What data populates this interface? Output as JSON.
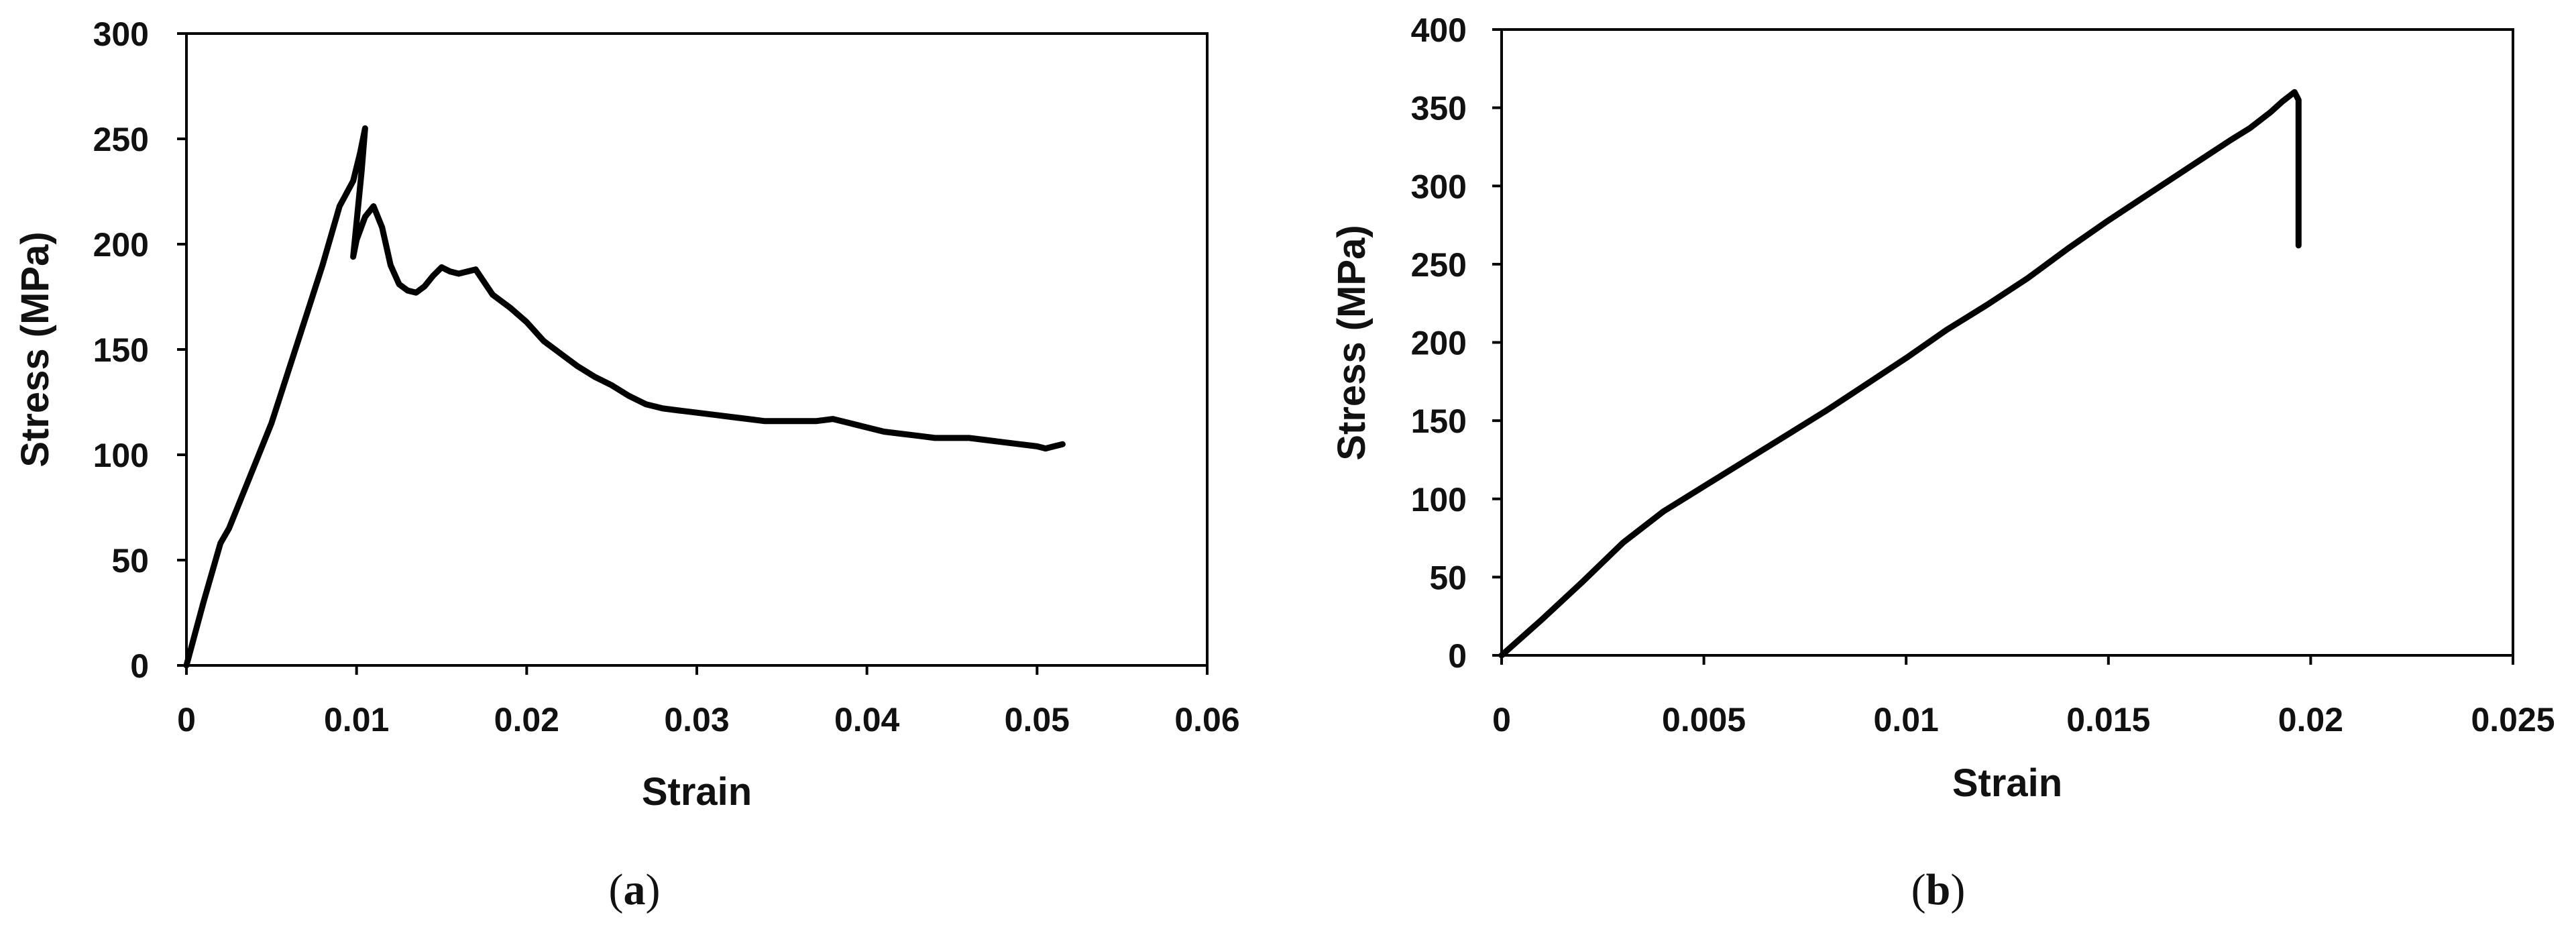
{
  "chart_data": [
    {
      "panel": "a",
      "caption_letter": "a",
      "type": "line",
      "title": "",
      "xlabel": "Strain",
      "ylabel": "Stress (MPa)",
      "xlim": [
        0,
        0.06
      ],
      "ylim": [
        0,
        300
      ],
      "xticks": [
        0,
        0.01,
        0.02,
        0.03,
        0.04,
        0.05,
        0.06
      ],
      "xtick_labels": [
        "0",
        "0.01",
        "0.02",
        "0.03",
        "0.04",
        "0.05",
        "0.06"
      ],
      "yticks": [
        0,
        50,
        100,
        150,
        200,
        250,
        300
      ],
      "ytick_labels": [
        "0",
        "50",
        "100",
        "150",
        "200",
        "250",
        "300"
      ],
      "grid": false,
      "legend": "none",
      "line_color": "#000000",
      "series": [
        {
          "x": [
            0,
            0.001,
            0.002,
            0.0025,
            0.003,
            0.004,
            0.005,
            0.006,
            0.007,
            0.008,
            0.009,
            0.0098,
            0.0102,
            0.0105,
            0.0103,
            0.0098,
            0.01,
            0.0105,
            0.011,
            0.0115,
            0.012,
            0.0125,
            0.013,
            0.0135,
            0.014,
            0.0145,
            0.015,
            0.0155,
            0.016,
            0.017,
            0.018,
            0.019,
            0.02,
            0.021,
            0.022,
            0.023,
            0.024,
            0.025,
            0.026,
            0.027,
            0.028,
            0.029,
            0.03,
            0.031,
            0.032,
            0.033,
            0.034,
            0.035,
            0.036,
            0.037,
            0.038,
            0.039,
            0.04,
            0.041,
            0.042,
            0.043,
            0.044,
            0.045,
            0.046,
            0.047,
            0.048,
            0.049,
            0.05,
            0.0505,
            0.051,
            0.0515
          ],
          "y": [
            0,
            30,
            58,
            65,
            75,
            95,
            115,
            140,
            165,
            190,
            218,
            230,
            243,
            255,
            235,
            194,
            202,
            213,
            218,
            208,
            190,
            181,
            178,
            177,
            180,
            185,
            189,
            187,
            186,
            188,
            176,
            170,
            163,
            154,
            148,
            142,
            137,
            133,
            128,
            124,
            122,
            121,
            120,
            119,
            118,
            117,
            116,
            116,
            116,
            116,
            117,
            115,
            113,
            111,
            110,
            109,
            108,
            108,
            108,
            107,
            106,
            105,
            104,
            103,
            104,
            105
          ]
        }
      ]
    },
    {
      "panel": "b",
      "caption_letter": "b",
      "type": "line",
      "title": "",
      "xlabel": "Strain",
      "ylabel": "Stress (MPa)",
      "xlim": [
        0,
        0.025
      ],
      "ylim": [
        0,
        400
      ],
      "xticks": [
        0,
        0.005,
        0.01,
        0.015,
        0.02,
        0.025
      ],
      "xtick_labels": [
        "0",
        "0.005",
        "0.01",
        "0.015",
        "0.02",
        "0.025"
      ],
      "yticks": [
        0,
        50,
        100,
        150,
        200,
        250,
        300,
        350,
        400
      ],
      "ytick_labels": [
        "0",
        "50",
        "100",
        "150",
        "200",
        "250",
        "300",
        "350",
        "400"
      ],
      "grid": false,
      "legend": "none",
      "line_color": "#000000",
      "series": [
        {
          "x": [
            0,
            0.001,
            0.002,
            0.003,
            0.004,
            0.005,
            0.006,
            0.007,
            0.008,
            0.009,
            0.01,
            0.011,
            0.012,
            0.013,
            0.014,
            0.015,
            0.016,
            0.017,
            0.018,
            0.0185,
            0.019,
            0.0193,
            0.0195,
            0.0196,
            0.0197,
            0.0197,
            0.0197
          ],
          "y": [
            0,
            23,
            47,
            72,
            92,
            108,
            124,
            140,
            156,
            173,
            190,
            208,
            224,
            241,
            260,
            278,
            295,
            312,
            329,
            337,
            347,
            354,
            358,
            360,
            355,
            310,
            262
          ]
        }
      ]
    }
  ]
}
